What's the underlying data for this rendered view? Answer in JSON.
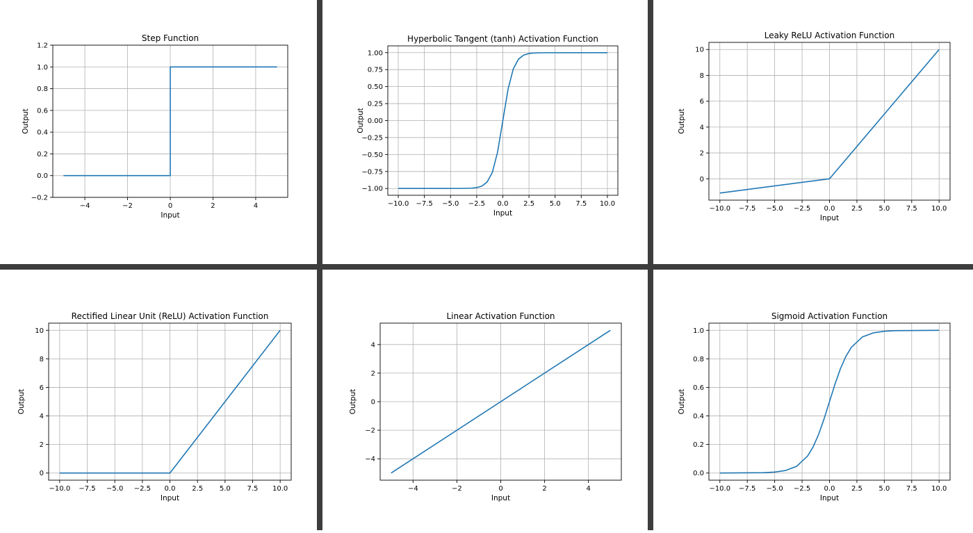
{
  "colors": {
    "line": "#1f77b4",
    "grid": "#b0b0b0",
    "axes": "#000000",
    "divider": "#3d3d3d",
    "background": "#ffffff"
  },
  "chart_data": [
    {
      "type": "line",
      "title": "Step Function",
      "xlabel": "Input",
      "ylabel": "Output",
      "xlim": [
        -5.5,
        5.5
      ],
      "ylim": [
        -0.2,
        1.2
      ],
      "xticks": [
        -4,
        -2,
        0,
        2,
        4
      ],
      "xtick_labels": [
        "−4",
        "−2",
        "0",
        "2",
        "4"
      ],
      "yticks": [
        -0.2,
        0.0,
        0.2,
        0.4,
        0.6,
        0.8,
        1.0,
        1.2
      ],
      "ytick_labels": [
        "−0.2",
        "0.0",
        "0.2",
        "0.4",
        "0.6",
        "0.8",
        "1.0",
        "1.2"
      ],
      "grid": true,
      "x": [
        -5,
        0,
        0,
        5
      ],
      "y": [
        0,
        0,
        1,
        1
      ]
    },
    {
      "type": "line",
      "title": "Hyperbolic Tangent (tanh) Activation Function",
      "xlabel": "Input",
      "ylabel": "Output",
      "xlim": [
        -11,
        11
      ],
      "ylim": [
        -1.1,
        1.1
      ],
      "xticks": [
        -10,
        -7.5,
        -5,
        -2.5,
        0,
        2.5,
        5,
        7.5,
        10
      ],
      "xtick_labels": [
        "−10.0",
        "−7.5",
        "−5.0",
        "−2.5",
        "0.0",
        "2.5",
        "5.0",
        "7.5",
        "10.0"
      ],
      "yticks": [
        -1,
        -0.75,
        -0.5,
        -0.25,
        0,
        0.25,
        0.5,
        0.75,
        1
      ],
      "ytick_labels": [
        "−1.00",
        "−0.75",
        "−0.50",
        "−0.25",
        "0.00",
        "0.25",
        "0.50",
        "0.75",
        "1.00"
      ],
      "grid": true,
      "x": [
        -10,
        -4,
        -3,
        -2.5,
        -2,
        -1.5,
        -1,
        -0.5,
        0,
        0.5,
        1,
        1.5,
        2,
        2.5,
        3,
        4,
        10
      ],
      "y": [
        -1,
        -0.999,
        -0.995,
        -0.987,
        -0.964,
        -0.905,
        -0.762,
        -0.462,
        0,
        0.462,
        0.762,
        0.905,
        0.964,
        0.987,
        0.995,
        0.999,
        1
      ]
    },
    {
      "type": "line",
      "title": "Leaky ReLU Activation Function",
      "xlabel": "Input",
      "ylabel": "Output",
      "xlim": [
        -11,
        11
      ],
      "ylim": [
        -1.65,
        10.55
      ],
      "xticks": [
        -10,
        -7.5,
        -5,
        -2.5,
        0,
        2.5,
        5,
        7.5,
        10
      ],
      "xtick_labels": [
        "−10.0",
        "−7.5",
        "−5.0",
        "−2.5",
        "0.0",
        "2.5",
        "5.0",
        "7.5",
        "10.0"
      ],
      "yticks": [
        0,
        2,
        4,
        6,
        8,
        10
      ],
      "ytick_labels": [
        "0",
        "2",
        "4",
        "6",
        "8",
        "10"
      ],
      "grid": true,
      "x": [
        -10,
        0,
        10
      ],
      "y": [
        -1.1,
        0,
        10
      ]
    },
    {
      "type": "line",
      "title": "Rectified Linear Unit (ReLU) Activation Function",
      "xlabel": "Input",
      "ylabel": "Output",
      "xlim": [
        -11,
        11
      ],
      "ylim": [
        -0.5,
        10.5
      ],
      "xticks": [
        -10,
        -7.5,
        -5,
        -2.5,
        0,
        2.5,
        5,
        7.5,
        10
      ],
      "xtick_labels": [
        "−10.0",
        "−7.5",
        "−5.0",
        "−2.5",
        "0.0",
        "2.5",
        "5.0",
        "7.5",
        "10.0"
      ],
      "yticks": [
        0,
        2,
        4,
        6,
        8,
        10
      ],
      "ytick_labels": [
        "0",
        "2",
        "4",
        "6",
        "8",
        "10"
      ],
      "grid": true,
      "x": [
        -10,
        0,
        10
      ],
      "y": [
        0,
        0,
        10
      ]
    },
    {
      "type": "line",
      "title": "Linear Activation Function",
      "xlabel": "Input",
      "ylabel": "Output",
      "xlim": [
        -5.5,
        5.5
      ],
      "ylim": [
        -5.5,
        5.5
      ],
      "xticks": [
        -4,
        -2,
        0,
        2,
        4
      ],
      "xtick_labels": [
        "−4",
        "−2",
        "0",
        "2",
        "4"
      ],
      "yticks": [
        -4,
        -2,
        0,
        2,
        4
      ],
      "ytick_labels": [
        "−4",
        "−2",
        "0",
        "2",
        "4"
      ],
      "grid": true,
      "x": [
        -5,
        5
      ],
      "y": [
        -5,
        5
      ]
    },
    {
      "type": "line",
      "title": "Sigmoid Activation Function",
      "xlabel": "Input",
      "ylabel": "Output",
      "xlim": [
        -11,
        11
      ],
      "ylim": [
        -0.05,
        1.05
      ],
      "xticks": [
        -10,
        -7.5,
        -5,
        -2.5,
        0,
        2.5,
        5,
        7.5,
        10
      ],
      "xtick_labels": [
        "−10.0",
        "−7.5",
        "−5.0",
        "−2.5",
        "0.0",
        "2.5",
        "5.0",
        "7.5",
        "10.0"
      ],
      "yticks": [
        0,
        0.2,
        0.4,
        0.6,
        0.8,
        1
      ],
      "ytick_labels": [
        "0.0",
        "0.2",
        "0.4",
        "0.6",
        "0.8",
        "1.0"
      ],
      "grid": true,
      "x": [
        -10,
        -6,
        -5,
        -4,
        -3,
        -2,
        -1.5,
        -1,
        -0.5,
        0,
        0.5,
        1,
        1.5,
        2,
        3,
        4,
        5,
        6,
        10
      ],
      "y": [
        5e-05,
        0.0025,
        0.0067,
        0.018,
        0.047,
        0.119,
        0.182,
        0.269,
        0.378,
        0.5,
        0.622,
        0.731,
        0.818,
        0.881,
        0.953,
        0.982,
        0.993,
        0.9975,
        0.99995
      ]
    }
  ]
}
